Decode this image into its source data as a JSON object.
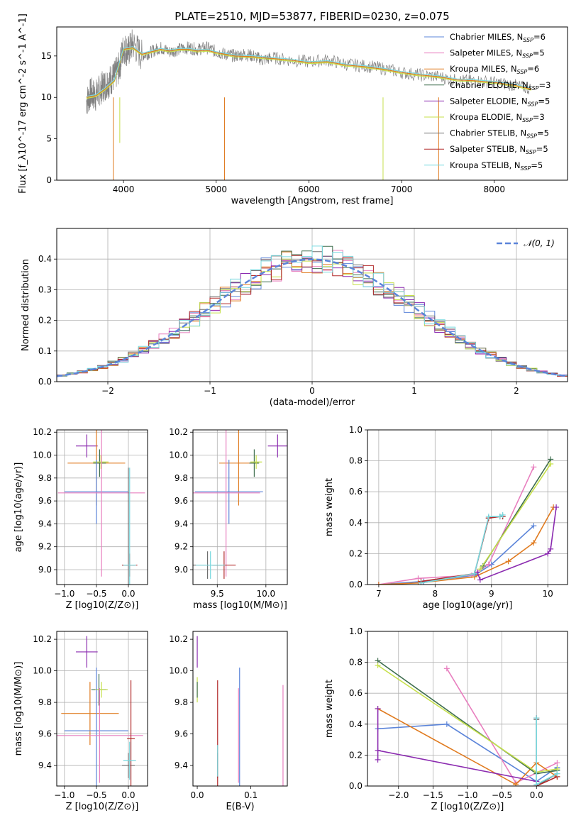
{
  "title": "PLATE=2510, MJD=53877, FIBERID=0230, z=0.075",
  "colors": {
    "Chabrier MILES": "#5b84d9",
    "Salpeter MILES": "#e87fbf",
    "Kroupa MILES": "#e07b20",
    "Chabrier ELODIE": "#3f6e4f",
    "Salpeter ELODIE": "#8b2bb0",
    "Kroupa ELODIE": "#c6e04a",
    "Chabrier STELIB": "#6f6f6f",
    "Salpeter STELIB": "#b22a2a",
    "Kroupa STELIB": "#79d9df",
    "normal": "#5b84d9",
    "grid": "#b0b0b0"
  },
  "chart_data": [
    {
      "id": "spectrum",
      "type": "line",
      "xlabel": "wavelength [Angstrom, rest frame]",
      "ylabel": "Flux [f_λ10^-17 erg cm^-2 s^-1 A^-1]",
      "xlim": [
        3280,
        8790
      ],
      "ylim": [
        0,
        18.5
      ],
      "xticks": [
        4000,
        5000,
        6000,
        7000,
        8000
      ],
      "yticks": [
        0,
        5,
        10,
        15
      ],
      "grid": false,
      "legend_position": "top-right",
      "legend": [
        {
          "name": "Chabrier MILES",
          "label": "Chabrier MILES, N",
          "sub": "SSP",
          "val": "=6"
        },
        {
          "name": "Salpeter MILES",
          "label": "Salpeter MILES, N",
          "sub": "SSP",
          "val": "=5"
        },
        {
          "name": "Kroupa MILES",
          "label": "Kroupa MILES, N",
          "sub": "SSP",
          "val": "=6"
        },
        {
          "name": "Chabrier ELODIE",
          "label": "Chabrier ELODIE, N",
          "sub": "SSP",
          "val": "=3"
        },
        {
          "name": "Salpeter ELODIE",
          "label": "Salpeter ELODIE, N",
          "sub": "SSP",
          "val": "=5"
        },
        {
          "name": "Kroupa ELODIE",
          "label": "Kroupa ELODIE, N",
          "sub": "SSP",
          "val": "=3"
        },
        {
          "name": "Chabrier STELIB",
          "label": "Chabrier STELIB, N",
          "sub": "SSP",
          "val": "=5"
        },
        {
          "name": "Salpeter STELIB",
          "label": "Salpeter STELIB, N",
          "sub": "SSP",
          "val": "=5"
        },
        {
          "name": "Kroupa STELIB",
          "label": "Kroupa STELIB, N",
          "sub": "SSP",
          "val": "=5"
        }
      ],
      "data_x": [
        3600,
        3650,
        3700,
        3750,
        3800,
        3850,
        3900,
        3950,
        4000,
        4050,
        4100,
        4200,
        4300,
        4400,
        4500,
        4600,
        4700,
        4800,
        4900,
        5000,
        5100,
        5200,
        5300,
        5400,
        5500,
        5600,
        5800,
        6000,
        6200,
        6400,
        6600,
        6800,
        7000,
        7200,
        7400,
        7600,
        7800,
        8000,
        8200,
        8400
      ],
      "data_y": [
        9.5,
        10.5,
        10.2,
        11,
        11.5,
        12,
        12.5,
        13.5,
        16,
        15.5,
        16.5,
        15,
        15.5,
        16,
        15.5,
        15.8,
        16,
        15.8,
        16,
        15.5,
        15.2,
        15,
        15.2,
        15,
        14.5,
        14.8,
        14.5,
        14.3,
        14.5,
        14,
        13.8,
        13.5,
        13,
        12.7,
        12.5,
        12,
        12,
        11.8,
        11.5,
        11
      ],
      "model_x": [
        3600,
        3700,
        3800,
        3900,
        4000,
        4100,
        4200,
        4300,
        4400,
        4500,
        4600,
        4700,
        4800,
        4900,
        5000,
        5200,
        5400,
        5600,
        5800,
        6000,
        6200,
        6400,
        6600,
        6800,
        7000,
        7200,
        7400,
        7600,
        7800,
        8000,
        8200,
        8400
      ],
      "model_y": [
        10,
        10.2,
        11,
        12,
        15.8,
        16,
        15.2,
        15.5,
        15.8,
        15.6,
        15.8,
        15.8,
        15.6,
        15.7,
        15.4,
        15,
        14.9,
        14.7,
        14.5,
        14.2,
        14.3,
        13.9,
        13.7,
        13.4,
        13,
        12.7,
        12.5,
        12.1,
        12,
        11.8,
        11.5,
        11
      ]
    },
    {
      "id": "histogram",
      "type": "line",
      "xlabel": "(data-model)/error",
      "ylabel": "Normed distribution",
      "xlim": [
        -2.5,
        2.5
      ],
      "ylim": [
        0,
        0.5
      ],
      "xticks": [
        -2,
        -1,
        0,
        1,
        2
      ],
      "yticks": [
        0.0,
        0.1,
        0.2,
        0.3,
        0.4
      ],
      "grid": true,
      "legend_position": "top-right",
      "normal_label": "𝒩(0, 1)"
    },
    {
      "id": "age-vs-Z",
      "type": "scatter",
      "xlabel": "Z [log10(Z/Z⊙)]",
      "ylabel": "age [log10(age/yr)]",
      "xlim": [
        -1.12,
        0.3
      ],
      "ylim": [
        8.87,
        10.22
      ],
      "xticks": [
        -1.0,
        -0.5,
        0.0
      ],
      "yticks": [
        9.0,
        9.2,
        9.4,
        9.6,
        9.8,
        10.0,
        10.2
      ],
      "grid": true,
      "points": [
        {
          "s": "Salpeter ELODIE",
          "x": -0.65,
          "y": 10.08,
          "ex": 0.17,
          "ey": 0.1
        },
        {
          "s": "Kroupa MILES",
          "x": -0.5,
          "y": 9.93,
          "ex": 0.45,
          "ey": 0.37
        },
        {
          "s": "Chabrier ELODIE",
          "x": -0.45,
          "y": 9.93,
          "ex": 0.1,
          "ey": 0.12
        },
        {
          "s": "Kroupa ELODIE",
          "x": -0.43,
          "y": 9.94,
          "ex": 0.12,
          "ey": 0.06
        },
        {
          "s": "Chabrier MILES",
          "x": -0.5,
          "y": 9.68,
          "ex": 0.5,
          "ey": 0.28
        },
        {
          "s": "Salpeter MILES",
          "x": -0.42,
          "y": 9.67,
          "ex": 0.68,
          "ey": 0.73
        },
        {
          "s": "Chabrier STELIB",
          "x": 0.0,
          "y": 9.04,
          "ex": 0.1,
          "ey": 0.85
        },
        {
          "s": "Salpeter STELIB",
          "x": 0.02,
          "y": 9.04,
          "ex": 0.12,
          "ey": 0.1
        },
        {
          "s": "Kroupa STELIB",
          "x": 0.02,
          "y": 9.04,
          "ex": 0.1,
          "ey": 0.85
        }
      ]
    },
    {
      "id": "age-vs-mass",
      "type": "scatter",
      "xlabel": "mass [log10(M/M⊙)]",
      "ylabel": "",
      "xlim": [
        9.25,
        10.22
      ],
      "ylim": [
        8.87,
        10.22
      ],
      "xticks": [
        9.5,
        10.0
      ],
      "yticks": [
        9.0,
        9.2,
        9.4,
        9.6,
        9.8,
        10.0,
        10.2
      ],
      "grid": true,
      "points": [
        {
          "s": "Salpeter ELODIE",
          "x": 10.12,
          "y": 10.08,
          "ex": 0.1,
          "ey": 0.1
        },
        {
          "s": "Kroupa MILES",
          "x": 9.72,
          "y": 9.93,
          "ex": 0.2,
          "ey": 0.37
        },
        {
          "s": "Chabrier ELODIE",
          "x": 9.88,
          "y": 9.93,
          "ex": 0.05,
          "ey": 0.12
        },
        {
          "s": "Kroupa ELODIE",
          "x": 9.9,
          "y": 9.94,
          "ex": 0.06,
          "ey": 0.06
        },
        {
          "s": "Chabrier MILES",
          "x": 9.62,
          "y": 9.68,
          "ex": 0.35,
          "ey": 0.28
        },
        {
          "s": "Salpeter MILES",
          "x": 9.59,
          "y": 9.67,
          "ex": 0.35,
          "ey": 0.73
        },
        {
          "s": "Chabrier STELIB",
          "x": 9.4,
          "y": 9.04,
          "ex": 0.15,
          "ey": 0.12
        },
        {
          "s": "Salpeter STELIB",
          "x": 9.57,
          "y": 9.04,
          "ex": 0.12,
          "ey": 0.12
        },
        {
          "s": "Kroupa STELIB",
          "x": 9.43,
          "y": 9.04,
          "ex": 0.15,
          "ey": 0.12
        }
      ]
    },
    {
      "id": "mass-weight-vs-age",
      "type": "line",
      "xlabel": "age [log10(age/yr)]",
      "ylabel": "mass weight",
      "xlim": [
        6.8,
        10.35
      ],
      "ylim": [
        0,
        1.0
      ],
      "xticks": [
        7,
        8,
        9,
        10
      ],
      "yticks": [
        0.0,
        0.2,
        0.4,
        0.6,
        0.8,
        1.0
      ],
      "grid": true,
      "series": [
        {
          "name": "Chabrier MILES",
          "x": [
            7.0,
            7.8,
            8.7,
            9.0,
            9.75
          ],
          "y": [
            0.0,
            0.02,
            0.06,
            0.13,
            0.38
          ]
        },
        {
          "name": "Salpeter MILES",
          "x": [
            7.0,
            7.7,
            8.65,
            8.95,
            9.75
          ],
          "y": [
            0.0,
            0.04,
            0.06,
            0.13,
            0.76
          ]
        },
        {
          "name": "Kroupa MILES",
          "x": [
            7.0,
            7.7,
            8.7,
            9.3,
            9.75,
            10.1
          ],
          "y": [
            0.0,
            0.01,
            0.05,
            0.15,
            0.27,
            0.5
          ]
        },
        {
          "name": "Chabrier ELODIE",
          "x": [
            8.85,
            10.05
          ],
          "y": [
            0.12,
            0.81
          ]
        },
        {
          "name": "Salpeter ELODIE",
          "x": [
            8.75,
            8.8,
            10.0,
            10.05,
            10.15
          ],
          "y": [
            0.08,
            0.03,
            0.2,
            0.23,
            0.5
          ]
        },
        {
          "name": "Kroupa ELODIE",
          "x": [
            8.8,
            10.05
          ],
          "y": [
            0.1,
            0.78
          ]
        },
        {
          "name": "Chabrier STELIB",
          "x": [
            7.75,
            8.7,
            8.95,
            9.15,
            9.2
          ],
          "y": [
            0.01,
            0.07,
            0.43,
            0.44,
            0.44
          ]
        },
        {
          "name": "Salpeter STELIB",
          "x": [
            7.75,
            8.7,
            8.95,
            9.15,
            9.2
          ],
          "y": [
            0.02,
            0.07,
            0.43,
            0.44,
            0.44
          ]
        },
        {
          "name": "Kroupa STELIB",
          "x": [
            7.75,
            8.7,
            8.95,
            9.15,
            9.2
          ],
          "y": [
            0.01,
            0.07,
            0.44,
            0.44,
            0.45
          ]
        }
      ]
    },
    {
      "id": "mass-vs-Z",
      "type": "scatter",
      "xlabel": "Z [log10(Z/Z⊙)]",
      "ylabel": "mass [log10(M/M⊙)]",
      "xlim": [
        -1.12,
        0.3
      ],
      "ylim": [
        9.27,
        10.25
      ],
      "xticks": [
        -1.0,
        -0.5,
        0.0
      ],
      "yticks": [
        9.4,
        9.6,
        9.8,
        10.0,
        10.2
      ],
      "grid": true,
      "points": [
        {
          "s": "Salpeter ELODIE",
          "x": -0.65,
          "y": 10.12,
          "ex": 0.17,
          "ey": 0.1
        },
        {
          "s": "Kroupa MILES",
          "x": -0.6,
          "y": 9.73,
          "ex": 0.45,
          "ey": 0.2
        },
        {
          "s": "Chabrier ELODIE",
          "x": -0.46,
          "y": 9.88,
          "ex": 0.12,
          "ey": 0.1
        },
        {
          "s": "Kroupa ELODIE",
          "x": -0.42,
          "y": 9.88,
          "ex": 0.1,
          "ey": 0.05
        },
        {
          "s": "Chabrier MILES",
          "x": -0.5,
          "y": 9.62,
          "ex": 0.5,
          "ey": 0.4
        },
        {
          "s": "Salpeter MILES",
          "x": -0.45,
          "y": 9.59,
          "ex": 0.68,
          "ey": 0.3
        },
        {
          "s": "Chabrier STELIB",
          "x": 0.0,
          "y": 9.4,
          "ex": 0.1,
          "ey": 0.08
        },
        {
          "s": "Salpeter STELIB",
          "x": 0.04,
          "y": 9.57,
          "ex": 0.06,
          "ey": 0.37
        },
        {
          "s": "Kroupa STELIB",
          "x": 0.02,
          "y": 9.43,
          "ex": 0.1,
          "ey": 0.12
        }
      ]
    },
    {
      "id": "mass-vs-ebv",
      "type": "scatter",
      "xlabel": "E(B-V)",
      "ylabel": "",
      "xlim": [
        -0.008,
        0.168
      ],
      "ylim": [
        9.27,
        10.25
      ],
      "xticks": [
        0.0,
        0.1
      ],
      "yticks": [
        9.4,
        9.6,
        9.8,
        10.0,
        10.2
      ],
      "grid": false,
      "points": [
        {
          "s": "Salpeter ELODIE",
          "x": 0.0,
          "y": 10.12,
          "ex": 0,
          "ey": 0.1
        },
        {
          "s": "Kroupa ELODIE",
          "x": 0.0,
          "y": 9.88,
          "ex": 0,
          "ey": 0.08
        },
        {
          "s": "Chabrier ELODIE",
          "x": 0.0,
          "y": 9.88,
          "ex": 0,
          "ey": 0.05
        },
        {
          "s": "Chabrier STELIB",
          "x": 0.038,
          "y": 9.4,
          "ex": 0,
          "ey": 0.08
        },
        {
          "s": "Salpeter STELIB",
          "x": 0.038,
          "y": 9.57,
          "ex": 0,
          "ey": 0.37
        },
        {
          "s": "Kroupa STELIB",
          "x": 0.038,
          "y": 9.43,
          "ex": 0,
          "ey": 0.1
        },
        {
          "s": "Salpeter MILES",
          "x": 0.077,
          "y": 9.59,
          "ex": 0,
          "ey": 0.3
        },
        {
          "s": "Chabrier MILES",
          "x": 0.079,
          "y": 9.62,
          "ex": 0,
          "ey": 0.4
        },
        {
          "s": "Salpeter MILES",
          "x": 0.16,
          "y": 9.59,
          "ex": 0,
          "ey": 0.32
        }
      ]
    },
    {
      "id": "mass-weight-vs-Z",
      "type": "line",
      "xlabel": "Z [log10(Z/Z⊙)]",
      "ylabel": "mass weight",
      "xlim": [
        -2.45,
        0.45
      ],
      "ylim": [
        0,
        1.0
      ],
      "xticks": [
        -2.0,
        -1.5,
        -1.0,
        -0.5,
        0.0
      ],
      "yticks": [
        0.0,
        0.2,
        0.4,
        0.6,
        0.8,
        1.0
      ],
      "grid": true,
      "series": [
        {
          "name": "Chabrier MILES",
          "x": [
            -2.3,
            -1.3,
            0.0,
            0.3
          ],
          "y": [
            0.37,
            0.4,
            0.03,
            0.12
          ]
        },
        {
          "name": "Salpeter MILES",
          "x": [
            -1.3,
            -0.3,
            0.3
          ],
          "y": [
            0.76,
            0.02,
            0.15
          ]
        },
        {
          "name": "Kroupa MILES",
          "x": [
            -2.3,
            -0.3,
            0.0,
            0.3
          ],
          "y": [
            0.5,
            0.01,
            0.15,
            0.06
          ]
        },
        {
          "name": "Chabrier ELODIE",
          "x": [
            -2.3,
            0.0,
            0.3
          ],
          "y": [
            0.81,
            0.08,
            0.1
          ]
        },
        {
          "name": "Salpeter ELODIE",
          "x": [
            -2.3,
            -2.3,
            -2.3,
            0.0
          ],
          "y": [
            0.5,
            0.17,
            0.23,
            0.03
          ]
        },
        {
          "name": "Kroupa ELODIE",
          "x": [
            -2.3,
            0.0,
            0.3
          ],
          "y": [
            0.78,
            0.09,
            0.11
          ]
        },
        {
          "name": "Chabrier STELIB",
          "x": [
            0.0,
            0.0,
            0.3
          ],
          "y": [
            0.43,
            0.0,
            0.08
          ]
        },
        {
          "name": "Salpeter STELIB",
          "x": [
            0.0,
            0.0,
            0.3
          ],
          "y": [
            0.44,
            0.0,
            0.06
          ]
        },
        {
          "name": "Kroupa STELIB",
          "x": [
            0.0,
            0.0,
            0.3
          ],
          "y": [
            0.44,
            0.01,
            0.08
          ]
        }
      ]
    }
  ]
}
